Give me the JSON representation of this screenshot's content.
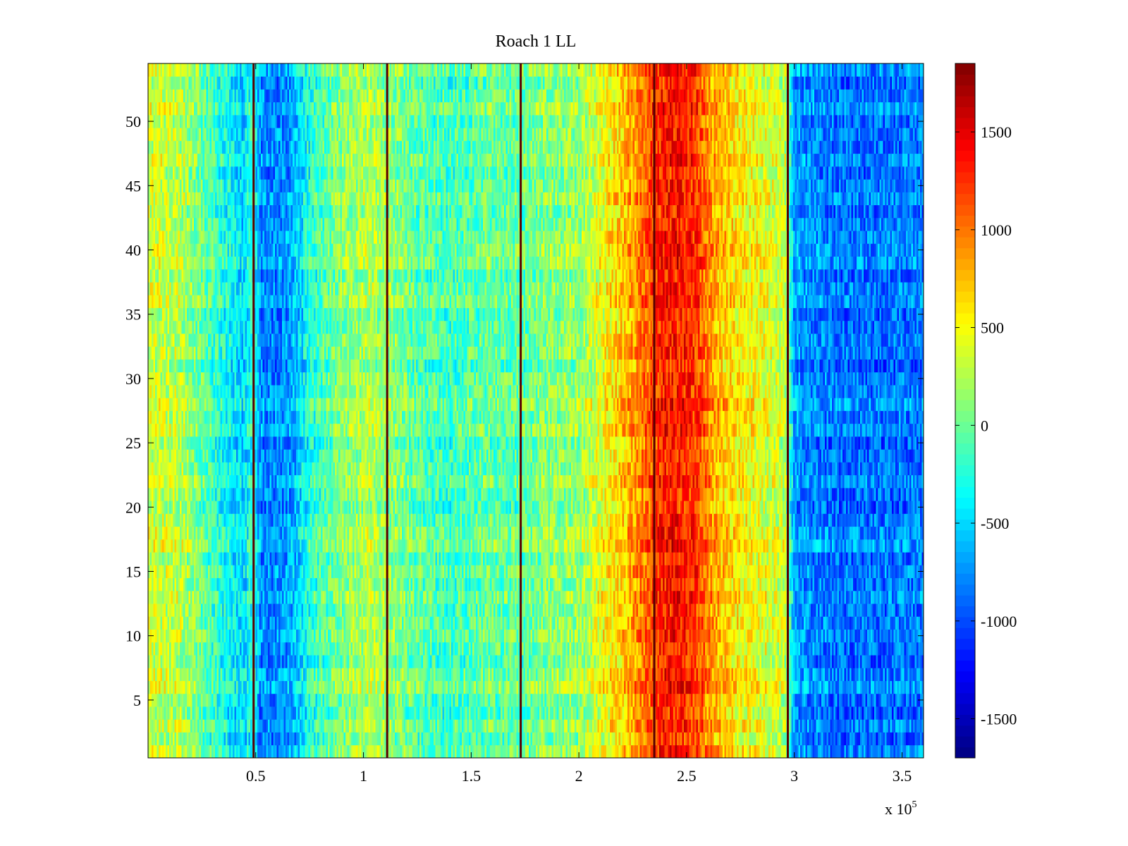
{
  "chart_data": {
    "type": "heatmap",
    "title": "Roach 1 LL",
    "xlabel": "",
    "ylabel": "",
    "x_multiplier_base": "x 10",
    "x_multiplier_exponent": "5",
    "xlim": [
      0,
      360000
    ],
    "ylim": [
      0.5,
      54.5
    ],
    "n_rows": 54,
    "x_ticks": [
      {
        "value": 50000,
        "label": "0.5"
      },
      {
        "value": 100000,
        "label": "1"
      },
      {
        "value": 150000,
        "label": "1.5"
      },
      {
        "value": 200000,
        "label": "2"
      },
      {
        "value": 250000,
        "label": "2.5"
      },
      {
        "value": 300000,
        "label": "3"
      },
      {
        "value": 350000,
        "label": "3.5"
      }
    ],
    "y_ticks": [
      {
        "value": 5,
        "label": "5"
      },
      {
        "value": 10,
        "label": "10"
      },
      {
        "value": 15,
        "label": "15"
      },
      {
        "value": 20,
        "label": "20"
      },
      {
        "value": 25,
        "label": "25"
      },
      {
        "value": 30,
        "label": "30"
      },
      {
        "value": 35,
        "label": "35"
      },
      {
        "value": 40,
        "label": "40"
      },
      {
        "value": 45,
        "label": "45"
      },
      {
        "value": 50,
        "label": "50"
      }
    ],
    "colorbar": {
      "colormap": "jet",
      "clim": [
        -1700,
        1850
      ],
      "ticks": [
        {
          "value": 1500,
          "label": "1500"
        },
        {
          "value": 1000,
          "label": "1000"
        },
        {
          "value": 500,
          "label": "500"
        },
        {
          "value": 0,
          "label": "0"
        },
        {
          "value": -500,
          "label": "-500"
        },
        {
          "value": -1000,
          "label": "-1000"
        },
        {
          "value": -1500,
          "label": "-1500"
        }
      ]
    },
    "column_profile": [
      [
        0,
        350
      ],
      [
        15000,
        280
      ],
      [
        30000,
        -150
      ],
      [
        44000,
        -500
      ],
      [
        49000,
        -200
      ],
      [
        52000,
        -750
      ],
      [
        58000,
        -800
      ],
      [
        66000,
        -700
      ],
      [
        75000,
        -250
      ],
      [
        90000,
        100
      ],
      [
        102000,
        250
      ],
      [
        112000,
        150
      ],
      [
        125000,
        -50
      ],
      [
        140000,
        -150
      ],
      [
        158000,
        0
      ],
      [
        172000,
        -50
      ],
      [
        185000,
        100
      ],
      [
        200000,
        150
      ],
      [
        212000,
        500
      ],
      [
        220000,
        700
      ],
      [
        230000,
        1000
      ],
      [
        238000,
        1300
      ],
      [
        246000,
        1350
      ],
      [
        255000,
        1200
      ],
      [
        262000,
        850
      ],
      [
        272000,
        600
      ],
      [
        285000,
        450
      ],
      [
        296000,
        300
      ],
      [
        300000,
        -700
      ],
      [
        320000,
        -850
      ],
      [
        345000,
        -850
      ],
      [
        360000,
        -800
      ]
    ],
    "dark_vertical_lines_x": [
      49000,
      111000,
      173000,
      235000,
      297000
    ]
  }
}
